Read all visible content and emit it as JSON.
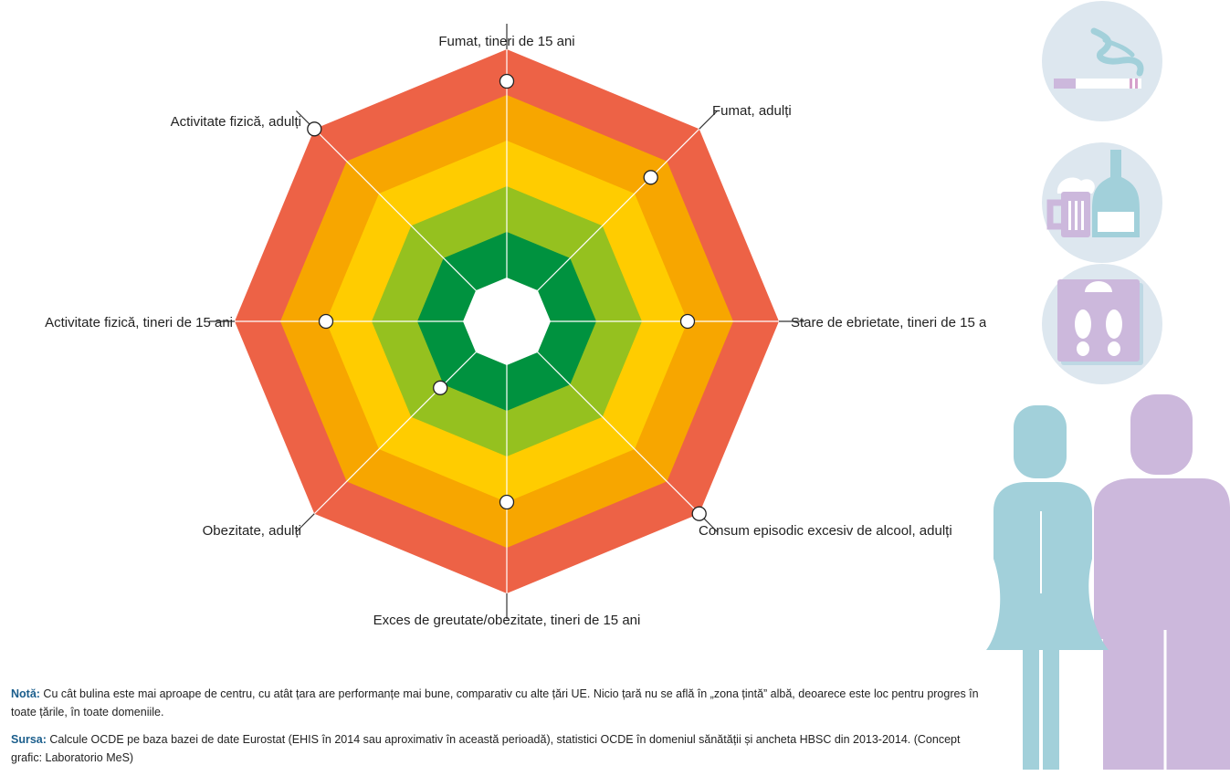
{
  "chart_data": {
    "type": "radar",
    "axes": [
      "Fumat, tineri de 15 ani",
      "Fumat, adulți",
      "Stare de ebrietate, tineri de 15 ani",
      "Consum episodic excesiv de alcool, adulți",
      "Exces de greutate/obezitate, tineri de 15 ani",
      "Obezitate, adulți",
      "Activitate fizică, tineri de 15 ani",
      "Activitate fizică, adulți"
    ],
    "values": [
      4.3,
      3.5,
      3.0,
      5.0,
      3.0,
      1.1,
      3.0,
      5.0
    ],
    "scale_max": 5,
    "bands": [
      {
        "color": "#ffffff"
      },
      {
        "color": "#00923f"
      },
      {
        "color": "#95c11f"
      },
      {
        "color": "#ffcc00"
      },
      {
        "color": "#f7a600"
      },
      {
        "color": "#ed6246"
      }
    ]
  },
  "notes": {
    "nota_label": "Notă:",
    "nota_text": " Cu cât bulina este mai aproape de centru, cu atât țara are performanțe mai bune, comparativ cu alte țări UE. Nicio țară nu se află în „zona țintă” albă, deoarece este loc pentru progres în toate țările, în toate domeniile.",
    "sursa_label": "Sursa:",
    "sursa_text": " Calcule OCDE pe baza bazei de date Eurostat (EHIS în 2014 sau aproximativ în această perioadă), statistici OCDE în domeniul sănătății și ancheta HBSC din 2013-2014. (Concept grafic: Laboratorio MeS)"
  },
  "icons": [
    "smoking-icon",
    "alcohol-icon",
    "weight-scale-icon",
    "woman-figure-icon",
    "man-figure-icon"
  ],
  "colors": {
    "teal": "#a2d0da",
    "lilac": "#ccb8dc",
    "circle_bg": "#dde7ef",
    "pink": "#d6a1cc"
  }
}
